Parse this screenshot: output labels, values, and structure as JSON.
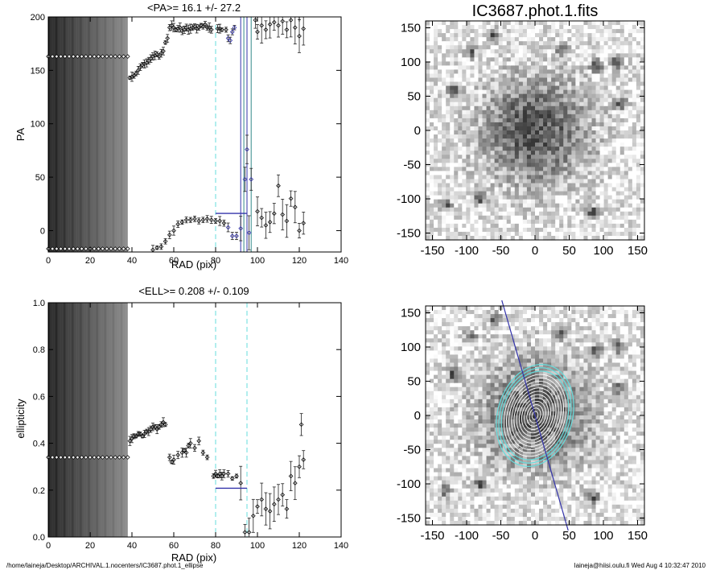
{
  "footer": {
    "left": "/home/laineja/Desktop/ARCHIVAL.1.nocenters/IC3687.phot.1_ellipse",
    "right": "laineja@hiisi.oulu.fi  Wed Aug  4 10:32:47 2010"
  },
  "colors": {
    "cyan": "#66dddd",
    "blue": "#3333aa",
    "teal": "#338888"
  },
  "chart_data": [
    {
      "id": "pa",
      "type": "scatter",
      "title": "<PA>=  16.1 +/-  27.2",
      "xlabel": "RAD (pix)",
      "ylabel": "PA",
      "xlim": [
        0,
        140
      ],
      "ylim": [
        -20,
        200
      ],
      "xticks": [
        "0",
        "20",
        "40",
        "60",
        "80",
        "100",
        "120",
        "140"
      ],
      "yticks": [
        "0",
        "50",
        "100",
        "150",
        "200"
      ],
      "dense_band": [
        0,
        38
      ],
      "cyan_lines": [
        80,
        95
      ],
      "blue_lines": [
        92,
        93.5,
        95,
        97
      ],
      "mean_segment": {
        "x": [
          80,
          95
        ],
        "y": 16.1
      },
      "series": [
        {
          "values": [
            [
              0,
              -17
            ],
            [
              2,
              -17
            ],
            [
              4,
              -17
            ],
            [
              6,
              -17
            ],
            [
              8,
              -17
            ],
            [
              10,
              -17
            ],
            [
              12,
              -17
            ],
            [
              14,
              -17
            ],
            [
              16,
              -17
            ],
            [
              18,
              -17
            ],
            [
              20,
              -17
            ],
            [
              22,
              -17
            ],
            [
              24,
              -17
            ],
            [
              26,
              -17
            ],
            [
              28,
              -17
            ],
            [
              30,
              -17
            ],
            [
              32,
              -17
            ],
            [
              34,
              -17
            ],
            [
              36,
              -17
            ],
            [
              38,
              -17
            ],
            [
              0,
              163
            ],
            [
              2,
              163
            ],
            [
              4,
              163
            ],
            [
              6,
              163
            ],
            [
              8,
              163
            ],
            [
              10,
              163
            ],
            [
              12,
              163
            ],
            [
              14,
              163
            ],
            [
              16,
              163
            ],
            [
              18,
              163
            ],
            [
              20,
              163
            ],
            [
              22,
              163
            ],
            [
              24,
              163
            ],
            [
              26,
              163
            ],
            [
              28,
              163
            ],
            [
              30,
              163
            ],
            [
              32,
              163
            ],
            [
              34,
              163
            ],
            [
              36,
              163
            ],
            [
              38,
              163
            ],
            [
              39,
              143
            ],
            [
              40,
              144
            ],
            [
              41,
              145
            ],
            [
              42,
              147
            ],
            [
              43,
              150
            ],
            [
              44,
              153
            ],
            [
              45,
              155
            ],
            [
              46,
              156
            ],
            [
              47,
              157
            ],
            [
              48,
              159
            ],
            [
              49,
              161
            ],
            [
              50,
              163
            ],
            [
              51,
              164
            ],
            [
              52,
              165
            ],
            [
              53,
              163
            ],
            [
              54,
              166
            ],
            [
              55,
              168
            ],
            [
              56,
              176
            ],
            [
              57,
              180
            ],
            [
              58,
              190
            ],
            [
              59,
              192
            ],
            [
              60,
              190
            ],
            [
              61,
              188
            ],
            [
              62,
              189
            ],
            [
              63,
              190
            ],
            [
              64,
              187
            ],
            [
              65,
              188
            ],
            [
              66,
              190
            ],
            [
              67,
              188
            ],
            [
              68,
              189
            ],
            [
              69,
              190
            ],
            [
              70,
              191
            ],
            [
              71,
              189
            ],
            [
              72,
              190
            ],
            [
              73,
              192
            ],
            [
              74,
              191
            ],
            [
              75,
              193
            ],
            [
              76,
              190
            ],
            [
              77,
              190
            ],
            [
              78,
              188
            ],
            [
              81,
              189
            ],
            [
              82,
              189
            ],
            [
              83,
              188
            ],
            [
              85,
              188
            ],
            [
              86,
              180
            ],
            [
              87,
              178
            ],
            [
              88,
              186
            ],
            [
              89,
              190
            ],
            [
              50,
              -18
            ],
            [
              52,
              -16
            ],
            [
              54,
              -15
            ],
            [
              56,
              -10
            ],
            [
              58,
              -4
            ],
            [
              60,
              0
            ],
            [
              62,
              6
            ],
            [
              64,
              8
            ],
            [
              66,
              10
            ],
            [
              68,
              10
            ],
            [
              70,
              11
            ],
            [
              72,
              9
            ],
            [
              74,
              10
            ],
            [
              76,
              11
            ],
            [
              78,
              10
            ],
            [
              80,
              9
            ],
            [
              82,
              9
            ],
            [
              84,
              7
            ],
            [
              86,
              3
            ],
            [
              88,
              -5
            ],
            [
              90,
              -5
            ],
            [
              92,
              2
            ],
            [
              94,
              48
            ],
            [
              95,
              76
            ],
            [
              96,
              -2
            ],
            [
              97,
              48
            ],
            [
              100,
              18
            ],
            [
              102,
              12
            ],
            [
              104,
              5
            ],
            [
              106,
              8
            ],
            [
              108,
              16
            ],
            [
              110,
              42
            ],
            [
              112,
              15
            ],
            [
              114,
              9
            ],
            [
              116,
              30
            ],
            [
              118,
              22
            ],
            [
              120,
              0
            ],
            [
              122,
              7
            ],
            [
              99,
              197
            ],
            [
              100,
              186
            ],
            [
              102,
              192
            ],
            [
              104,
              188
            ],
            [
              106,
              193
            ],
            [
              108,
              195
            ],
            [
              110,
              192
            ],
            [
              112,
              196
            ],
            [
              114,
              188
            ],
            [
              116,
              197
            ],
            [
              118,
              190
            ],
            [
              120,
              182
            ],
            [
              122,
              189
            ]
          ]
        }
      ]
    },
    {
      "id": "ell",
      "type": "scatter",
      "title": "<ELL>= 0.208 +/-  0.109",
      "xlabel": "RAD (pix)",
      "ylabel": "ellipticity",
      "xlim": [
        0,
        140
      ],
      "ylim": [
        0,
        1
      ],
      "xticks": [
        "0",
        "20",
        "40",
        "60",
        "80",
        "100",
        "120",
        "140"
      ],
      "yticks": [
        "0.0",
        "0.2",
        "0.4",
        "0.6",
        "0.8",
        "1.0"
      ],
      "dense_band": [
        0,
        38
      ],
      "cyan_lines": [
        80,
        95
      ],
      "mean_segment": {
        "x": [
          80,
          95
        ],
        "y": 0.208
      },
      "series": [
        {
          "values": [
            [
              0,
              0.34
            ],
            [
              2,
              0.34
            ],
            [
              4,
              0.34
            ],
            [
              6,
              0.34
            ],
            [
              8,
              0.34
            ],
            [
              10,
              0.34
            ],
            [
              12,
              0.34
            ],
            [
              14,
              0.34
            ],
            [
              16,
              0.34
            ],
            [
              18,
              0.34
            ],
            [
              20,
              0.34
            ],
            [
              22,
              0.34
            ],
            [
              24,
              0.34
            ],
            [
              26,
              0.34
            ],
            [
              28,
              0.34
            ],
            [
              30,
              0.34
            ],
            [
              32,
              0.34
            ],
            [
              34,
              0.34
            ],
            [
              36,
              0.34
            ],
            [
              38,
              0.34
            ],
            [
              39,
              0.41
            ],
            [
              40,
              0.42
            ],
            [
              41,
              0.43
            ],
            [
              42,
              0.43
            ],
            [
              43,
              0.44
            ],
            [
              44,
              0.44
            ],
            [
              45,
              0.43
            ],
            [
              46,
              0.44
            ],
            [
              47,
              0.45
            ],
            [
              48,
              0.45
            ],
            [
              49,
              0.46
            ],
            [
              50,
              0.47
            ],
            [
              51,
              0.47
            ],
            [
              52,
              0.46
            ],
            [
              53,
              0.47
            ],
            [
              54,
              0.48
            ],
            [
              55,
              0.49
            ],
            [
              56,
              0.48
            ],
            [
              58,
              0.34
            ],
            [
              59,
              0.32
            ],
            [
              60,
              0.33
            ],
            [
              62,
              0.35
            ],
            [
              64,
              0.36
            ],
            [
              65,
              0.37
            ],
            [
              66,
              0.36
            ],
            [
              67,
              0.39
            ],
            [
              68,
              0.4
            ],
            [
              70,
              0.38
            ],
            [
              72,
              0.41
            ],
            [
              74,
              0.36
            ],
            [
              76,
              0.34
            ],
            [
              79,
              0.26
            ],
            [
              80,
              0.27
            ],
            [
              81,
              0.26
            ],
            [
              82,
              0.27
            ],
            [
              83,
              0.26
            ],
            [
              84,
              0.27
            ],
            [
              86,
              0.27
            ],
            [
              88,
              0.25
            ],
            [
              90,
              0.26
            ],
            [
              92,
              0.23
            ],
            [
              94,
              0.02
            ],
            [
              96,
              0.02
            ],
            [
              98,
              0.09
            ],
            [
              100,
              0.13
            ],
            [
              102,
              0.16
            ],
            [
              104,
              0.12
            ],
            [
              106,
              0.11
            ],
            [
              108,
              0.14
            ],
            [
              110,
              0.16
            ],
            [
              112,
              0.18
            ],
            [
              114,
              0.12
            ],
            [
              116,
              0.26
            ],
            [
              118,
              0.23
            ],
            [
              120,
              0.3
            ],
            [
              122,
              0.33
            ],
            [
              121,
              0.48
            ]
          ]
        }
      ]
    },
    {
      "id": "img1",
      "type": "heatmap",
      "title": "IC3687.phot.1.fits",
      "xlim": [
        -160,
        160
      ],
      "ylim": [
        -160,
        160
      ],
      "xticks": [
        "-150",
        "-100",
        "-50",
        "0",
        "50",
        "100",
        "150"
      ],
      "yticks": [
        "-150",
        "-100",
        "-50",
        "0",
        "50",
        "100",
        "150"
      ],
      "colormap": "inverted grayscale"
    },
    {
      "id": "img2",
      "type": "heatmap",
      "title": "",
      "xlim": [
        -160,
        160
      ],
      "ylim": [
        -160,
        160
      ],
      "xticks": [
        "-150",
        "-100",
        "-50",
        "0",
        "50",
        "100",
        "150"
      ],
      "yticks": [
        "-150",
        "-100",
        "-50",
        "0",
        "50",
        "100",
        "150"
      ],
      "colormap": "inverted grayscale",
      "overlay": {
        "isophotes": "white",
        "fitted_ellipses": "cyan",
        "pa_line_angle_deg": 16.1
      }
    }
  ]
}
